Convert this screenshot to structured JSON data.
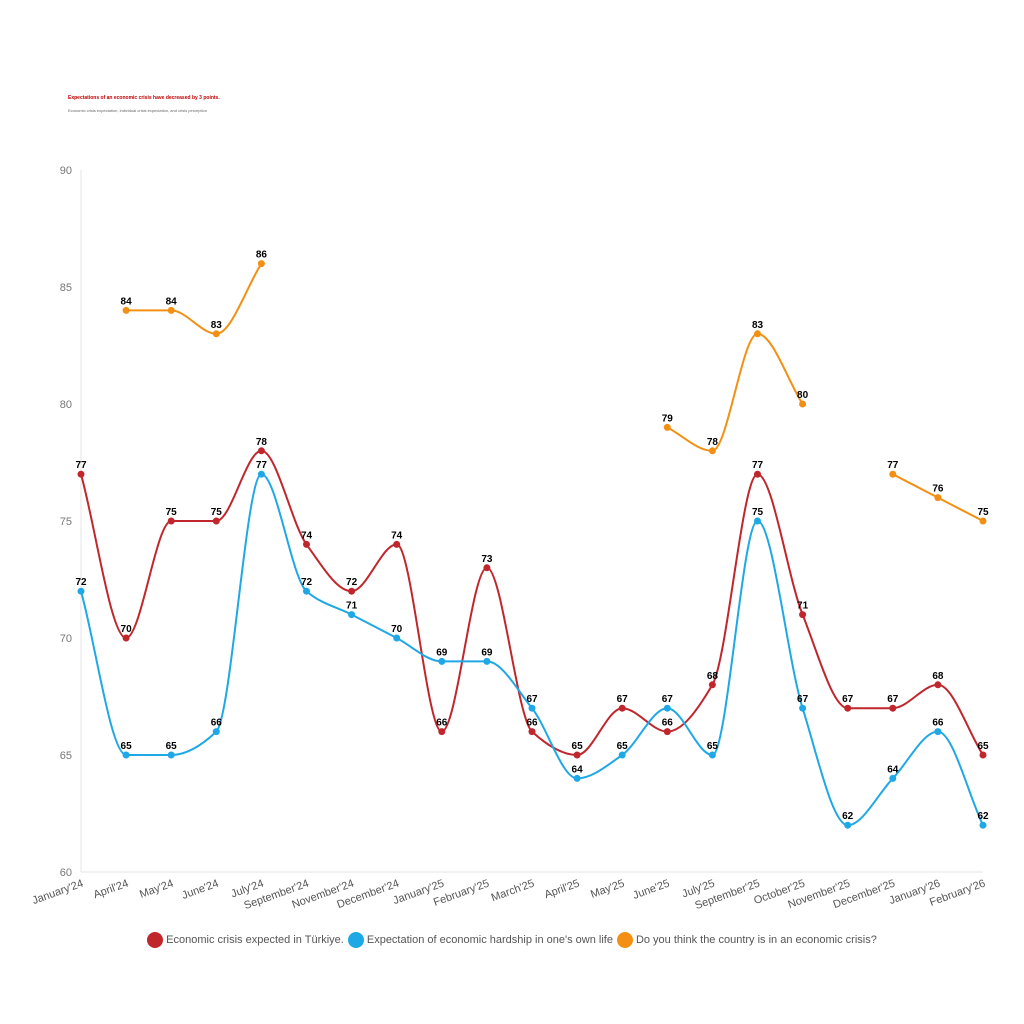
{
  "header": {
    "title": "Expectations of an economic crisis have decreased by 3 points.",
    "subtitle": "Economic crisis expectation, individual crisis expectation, and crisis perception"
  },
  "chart_data": {
    "type": "line",
    "categories": [
      "January'24",
      "April'24",
      "May'24",
      "June'24",
      "July'24",
      "September'24",
      "November'24",
      "December'24",
      "January'25",
      "February'25",
      "March'25",
      "April'25",
      "May'25",
      "June'25",
      "July'25",
      "September'25",
      "October'25",
      "November'25",
      "December'25",
      "January'26",
      "February'26"
    ],
    "ylim": [
      60,
      90
    ],
    "yticks": [
      60,
      65,
      70,
      75,
      80,
      85,
      90
    ],
    "grid": false,
    "legend_position": "bottom",
    "series": [
      {
        "name": "Economic crisis expected in Türkiye.",
        "color": "#c0272d",
        "values": [
          77,
          70,
          75,
          75,
          78,
          74,
          72,
          74,
          66,
          73,
          66,
          65,
          67,
          66,
          68,
          77,
          71,
          67,
          67,
          68,
          65
        ]
      },
      {
        "name": "Expectation of economic hardship in one's own life",
        "color": "#1fa8e6",
        "values": [
          72,
          65,
          65,
          66,
          77,
          72,
          71,
          70,
          69,
          69,
          67,
          64,
          65,
          67,
          65,
          75,
          67,
          62,
          64,
          66,
          62
        ]
      },
      {
        "name": "Do you think the country is in an economic crisis?",
        "color": "#f39014",
        "values": [
          null,
          84,
          84,
          83,
          86,
          null,
          null,
          null,
          null,
          null,
          null,
          null,
          null,
          79,
          78,
          83,
          80,
          null,
          77,
          76,
          75
        ]
      }
    ]
  }
}
